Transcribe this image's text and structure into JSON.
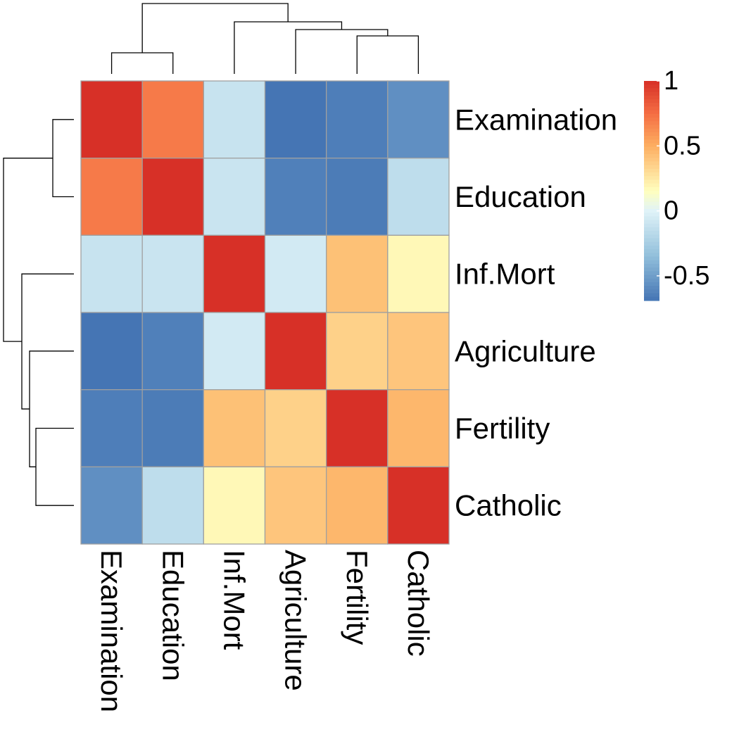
{
  "chart_data": {
    "type": "heatmap",
    "rows": [
      "Examination",
      "Education",
      "Inf.Mort",
      "Agriculture",
      "Fertility",
      "Catholic"
    ],
    "columns": [
      "Examination",
      "Education",
      "Inf.Mort",
      "Agriculture",
      "Fertility",
      "Catholic"
    ],
    "values": [
      [
        1.0,
        0.7,
        -0.11,
        -0.69,
        -0.65,
        -0.57
      ],
      [
        0.7,
        1.0,
        -0.1,
        -0.64,
        -0.66,
        -0.15
      ],
      [
        -0.11,
        -0.1,
        1.0,
        -0.06,
        0.42,
        0.18
      ],
      [
        -0.69,
        -0.64,
        -0.06,
        1.0,
        0.35,
        0.4
      ],
      [
        -0.65,
        -0.66,
        0.42,
        0.35,
        1.0,
        0.46
      ],
      [
        -0.57,
        -0.15,
        0.18,
        0.4,
        0.46,
        1.0
      ]
    ],
    "color_scale": {
      "min": -0.69,
      "max": 1.0,
      "stops": [
        {
          "value": -0.69,
          "color": "#4575b4"
        },
        {
          "value": -0.35,
          "color": "#91bfdb"
        },
        {
          "value": 0.0,
          "color": "#e0f3f8"
        },
        {
          "value": 0.15,
          "color": "#ffffbf"
        },
        {
          "value": 0.5,
          "color": "#fdae61"
        },
        {
          "value": 0.75,
          "color": "#f46d43"
        },
        {
          "value": 1.0,
          "color": "#d73027"
        }
      ]
    },
    "legend": {
      "ticks": [
        {
          "value": 1,
          "label": "1"
        },
        {
          "value": 0.5,
          "label": "0.5"
        },
        {
          "value": 0,
          "label": "0"
        },
        {
          "value": -0.5,
          "label": "-0.5"
        }
      ],
      "position": "right"
    },
    "row_dendrogram": [
      {
        "a": 0,
        "b": 1,
        "h": 0.3
      },
      {
        "a": 4,
        "b": 5,
        "h": 0.54
      },
      {
        "a": 3,
        "b": "c1",
        "h": 0.63
      },
      {
        "a": 2,
        "b": "c2",
        "h": 0.74
      },
      {
        "a": "c0",
        "b": "c3",
        "h": 1.0
      }
    ],
    "column_dendrogram": [
      {
        "a": 0,
        "b": 1,
        "h": 0.3
      },
      {
        "a": 4,
        "b": 5,
        "h": 0.54
      },
      {
        "a": 3,
        "b": "c1",
        "h": 0.63
      },
      {
        "a": 2,
        "b": "c2",
        "h": 0.74
      },
      {
        "a": "c0",
        "b": "c3",
        "h": 1.0
      }
    ]
  }
}
